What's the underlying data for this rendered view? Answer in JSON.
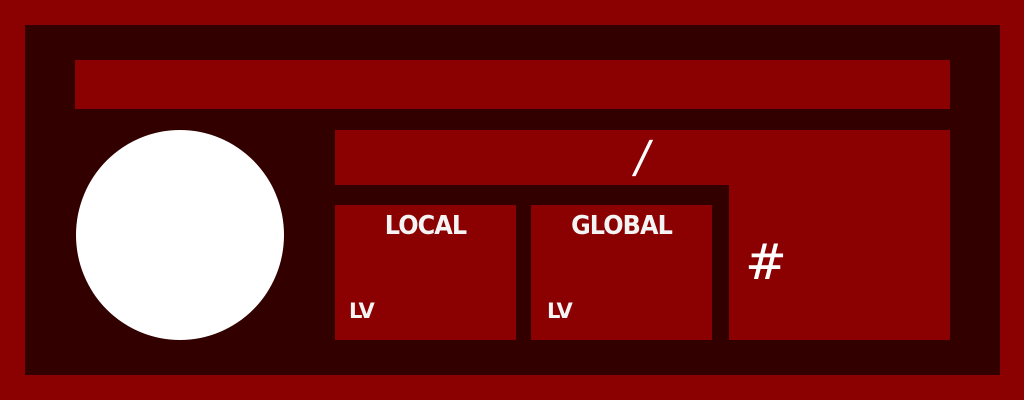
{
  "header": {
    "separator": "/"
  },
  "cards": [
    {
      "title": "LOCAL",
      "level_label": "LV"
    },
    {
      "title": "GLOBAL",
      "level_label": "LV"
    }
  ],
  "side_panel": {
    "symbol": "#"
  },
  "colors": {
    "background": "#8b0000",
    "frame": "#330000",
    "panel": "#8b0000",
    "text": "#ffffff"
  }
}
